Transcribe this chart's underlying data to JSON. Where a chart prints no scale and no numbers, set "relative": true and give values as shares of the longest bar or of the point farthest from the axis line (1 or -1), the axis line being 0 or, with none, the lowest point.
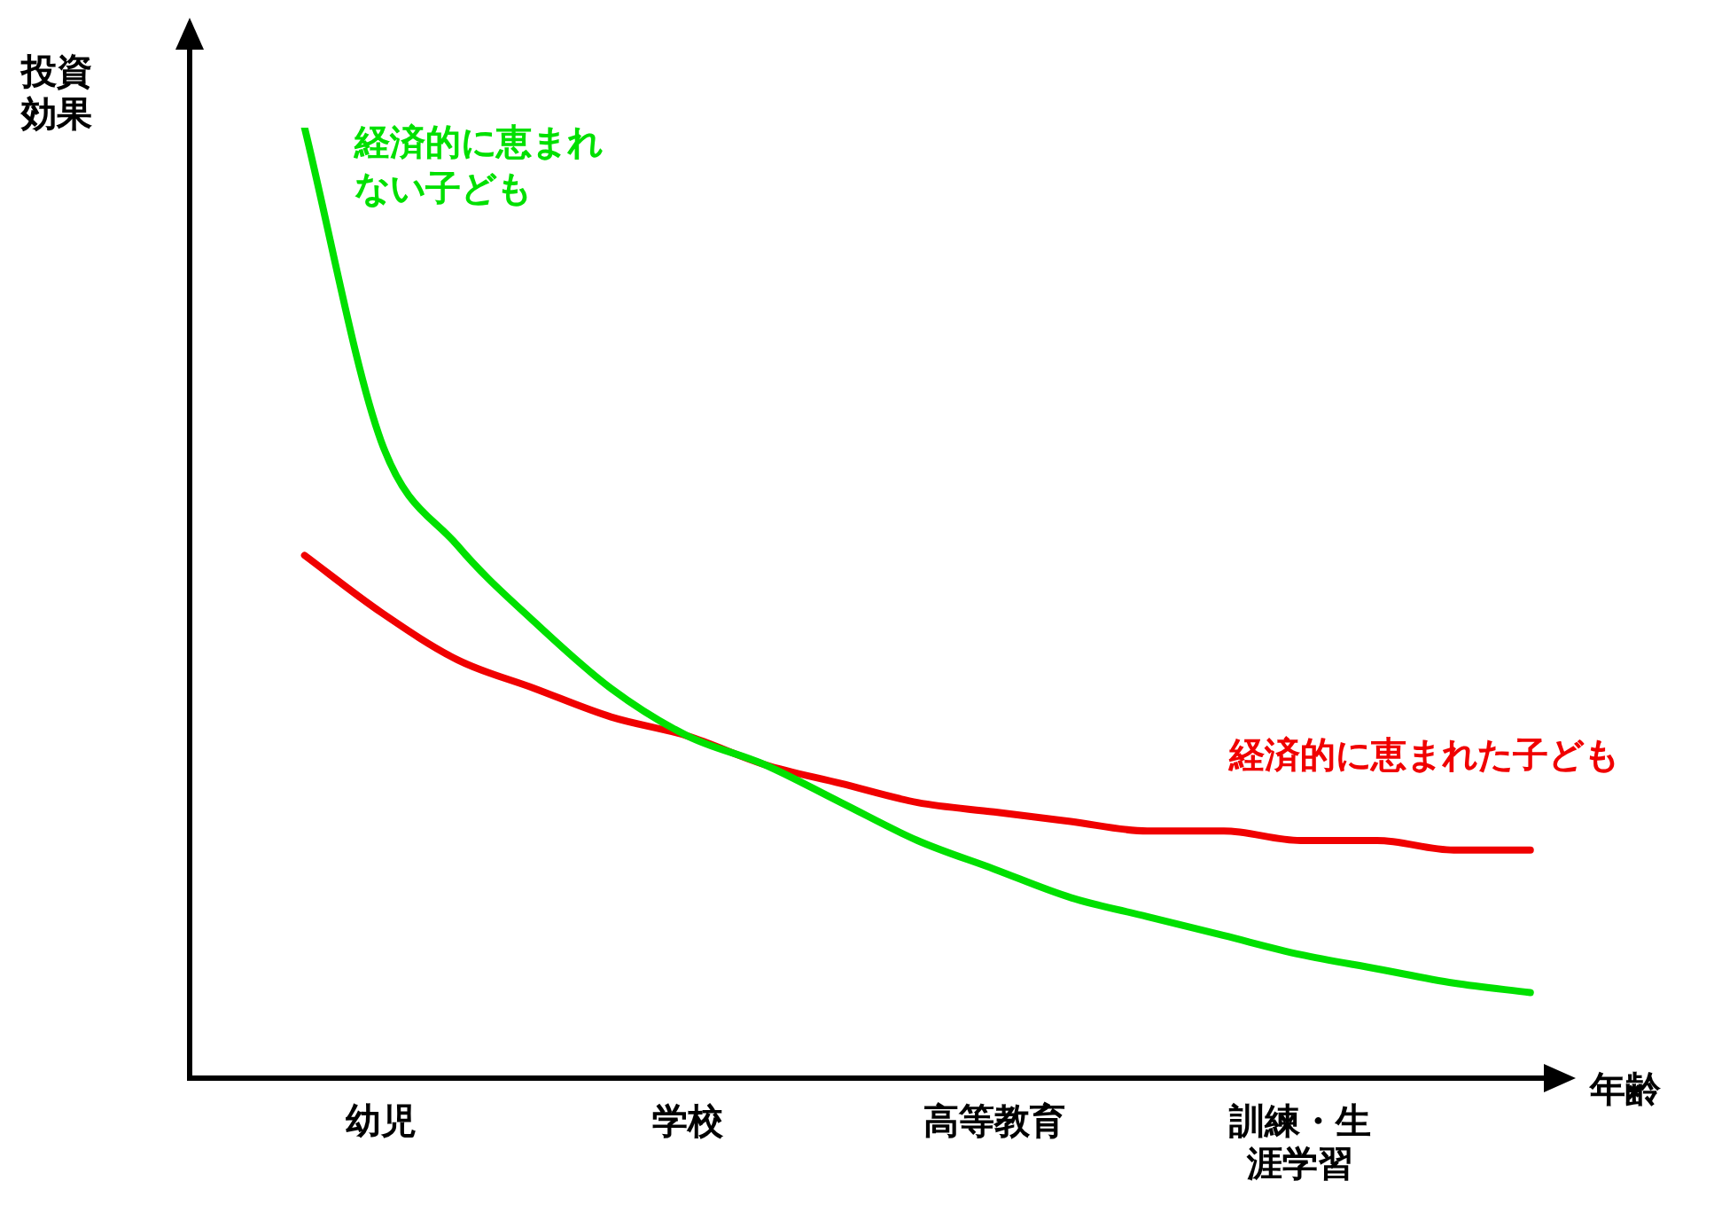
{
  "chart_data": {
    "type": "line",
    "relative": true,
    "xlabel": "年齢",
    "ylabel": "投資効果",
    "categories": [
      null,
      null,
      "幼児",
      null,
      null,
      null,
      "学校",
      null,
      null,
      null,
      "高等教育",
      null,
      null,
      null,
      "訓練・生涯学習",
      null,
      null,
      null
    ],
    "grid": false,
    "legend": false,
    "marker": "none",
    "line_style": "solid",
    "series": [
      {
        "name": "経済的に恵まれない子ども",
        "color": "#00e000",
        "values": [
          null,
          1.0,
          0.67,
          0.56,
          0.48,
          0.41,
          0.36,
          0.33,
          0.29,
          0.25,
          0.22,
          0.19,
          0.17,
          0.15,
          0.13,
          0.115,
          0.1,
          0.09
        ]
      },
      {
        "name": "経済的に恵まれた子ども",
        "color": "#f00000",
        "values": [
          null,
          0.55,
          0.49,
          0.44,
          0.41,
          0.38,
          0.36,
          0.33,
          0.31,
          0.29,
          0.28,
          0.27,
          0.26,
          0.26,
          0.25,
          0.25,
          0.24,
          0.24
        ]
      }
    ]
  }
}
